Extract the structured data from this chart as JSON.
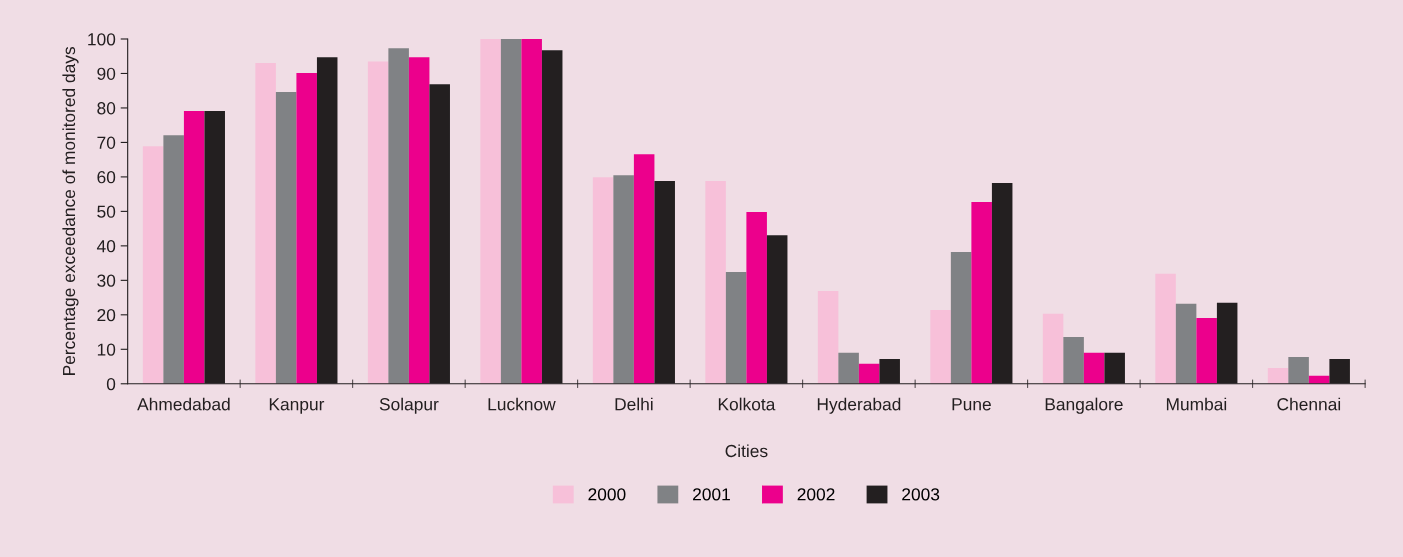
{
  "chart_data": {
    "type": "bar",
    "xlabel": "Cities",
    "ylabel": "Percentage exceedance of monitored days",
    "categories": [
      "Ahmedabad",
      "Kanpur",
      "Solapur",
      "Lucknow",
      "Delhi",
      "Kolkota",
      "Hyderabad",
      "Pune",
      "Bangalore",
      "Mumbai",
      "Chennai"
    ],
    "series": [
      {
        "name": "2000",
        "color": "#f7c0d9",
        "values": [
          68.9,
          93.0,
          93.5,
          100,
          59.9,
          58.8,
          26.9,
          21.4,
          20.3,
          31.9,
          4.6
        ]
      },
      {
        "name": "2001",
        "color": "#808285",
        "values": [
          72.1,
          84.6,
          97.3,
          100,
          60.5,
          32.4,
          9.0,
          38.2,
          13.6,
          23.2,
          7.8
        ]
      },
      {
        "name": "2002",
        "color": "#ec008c",
        "values": [
          79.1,
          90.1,
          94.7,
          100,
          66.6,
          49.8,
          5.8,
          52.7,
          9.0,
          19.1,
          2.3
        ]
      },
      {
        "name": "2003",
        "color": "#231f20",
        "values": [
          79.1,
          94.7,
          86.9,
          96.7,
          58.8,
          43.1,
          7.2,
          58.2,
          9.0,
          23.5,
          7.2
        ]
      }
    ],
    "ylim": [
      0,
      100
    ],
    "yticks": [
      0,
      10,
      20,
      30,
      40,
      50,
      60,
      70,
      80,
      90,
      100
    ],
    "grid": false,
    "legend": "bottom"
  }
}
